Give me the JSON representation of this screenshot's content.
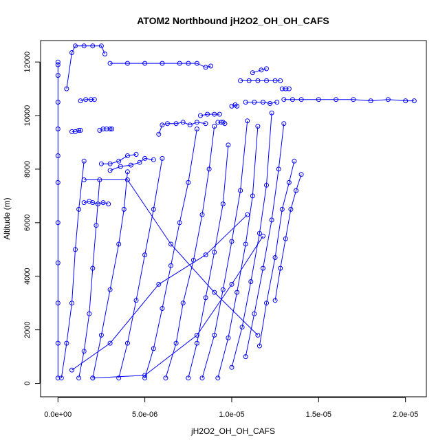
{
  "chart_data": {
    "type": "line",
    "title": "ATOM2 Northbound jH2O2_OH_OH_CAFS",
    "xlabel": "jH2O2_OH_OH_CAFS",
    "ylabel": "Altitude (m)",
    "xlim": [
      -1e-06,
      2.12e-05
    ],
    "ylim": [
      -500,
      12800
    ],
    "x_ticks": [
      0,
      5e-06,
      1e-05,
      1.5e-05,
      2e-05
    ],
    "x_tick_labels": [
      "0.0e+00",
      "5.0e-06",
      "1.0e-05",
      "1.5e-05",
      "2.0e-05"
    ],
    "y_ticks": [
      0,
      2000,
      4000,
      6000,
      8000,
      10000,
      12000
    ],
    "y_tick_labels": [
      "0",
      "2000",
      "4000",
      "6000",
      "8000",
      "10000",
      "12000"
    ],
    "grid": false,
    "legend": "none",
    "marker": "open-circle",
    "color": "#0000ff",
    "series": [
      {
        "x": [
          0.0,
          0.0,
          0.0,
          0.0,
          0.0,
          0.0,
          0.0,
          0.0,
          0.0,
          0.0,
          0.0,
          0.0
        ],
        "y": [
          200,
          1500,
          3000,
          4500,
          6000,
          7500,
          8500,
          9500,
          10500,
          11500,
          11900,
          12000
        ]
      },
      {
        "x": [
          5e-07,
          8e-07,
          1e-06,
          1.5e-06,
          2e-06,
          2.5e-06,
          2.7e-06
        ],
        "y": [
          11000,
          12350,
          12600,
          12600,
          12600,
          12600,
          12300
        ]
      },
      {
        "x": [
          3e-06,
          4e-06,
          5e-06,
          6e-06,
          7e-06,
          7.5e-06,
          8e-06,
          8.5e-06,
          8.8e-06
        ],
        "y": [
          11950,
          11950,
          11950,
          11950,
          11950,
          11950,
          11950,
          11800,
          11850
        ]
      },
      {
        "x": [
          1.3e-06,
          1.6e-06,
          1.9e-06,
          2.1e-06
        ],
        "y": [
          10550,
          10600,
          10600,
          10600
        ]
      },
      {
        "x": [
          8e-07,
          1e-06,
          1.2e-06,
          1.3e-06
        ],
        "y": [
          9400,
          9400,
          9450,
          9450
        ]
      },
      {
        "x": [
          2.4e-06,
          2.6e-06,
          2.8e-06,
          3e-06,
          3.1e-06
        ],
        "y": [
          9450,
          9500,
          9500,
          9500,
          9500
        ]
      },
      {
        "x": [
          2.5e-06,
          3e-06,
          3.5e-06,
          4e-06,
          4.5e-06
        ],
        "y": [
          8200,
          8200,
          8300,
          8500,
          8550
        ]
      },
      {
        "x": [
          3e-06,
          3.6e-06,
          4.2e-06,
          4.7e-06,
          5e-06,
          5.5e-06
        ],
        "y": [
          7950,
          8100,
          8150,
          8250,
          8400,
          8350
        ]
      },
      {
        "x": [
          1.5e-06,
          1.8e-06,
          2e-06,
          2.3e-06,
          2.6e-06,
          2.9e-06
        ],
        "y": [
          6750,
          6800,
          6750,
          6700,
          6750,
          6700
        ]
      },
      {
        "x": [
          5.8e-06,
          6e-06,
          6.3e-06,
          6.8e-06,
          7.2e-06,
          7.6e-06,
          8e-06,
          8.5e-06
        ],
        "y": [
          9300,
          9650,
          9700,
          9700,
          9750,
          9650,
          9750,
          9700
        ]
      },
      {
        "x": [
          8.2e-06,
          8.6e-06,
          9e-06,
          9.3e-06
        ],
        "y": [
          10000,
          10050,
          10050,
          10050
        ]
      },
      {
        "x": [
          9.2e-06,
          9.4e-06,
          9.5e-06,
          9.6e-06
        ],
        "y": [
          9750,
          9750,
          9750,
          9700
        ]
      },
      {
        "x": [
          1e-05,
          1.02e-05,
          1.03e-05
        ],
        "y": [
          10350,
          10400,
          10350
        ]
      },
      {
        "x": [
          1.05e-05,
          1.1e-05,
          1.15e-05,
          1.2e-05,
          1.25e-05,
          1.28e-05
        ],
        "y": [
          11300,
          11300,
          11300,
          11300,
          11300,
          11300
        ]
      },
      {
        "x": [
          1.12e-05,
          1.17e-05,
          1.2e-05
        ],
        "y": [
          11600,
          11700,
          11750
        ]
      },
      {
        "x": [
          1.08e-05,
          1.13e-05,
          1.18e-05,
          1.22e-05,
          1.26e-05
        ],
        "y": [
          10500,
          10500,
          10500,
          10450,
          10500
        ]
      },
      {
        "x": [
          1.3e-05,
          1.35e-05,
          1.4e-05,
          1.5e-05,
          1.6e-05,
          1.7e-05,
          1.8e-05,
          1.9e-05,
          2e-05,
          2.05e-05
        ],
        "y": [
          10600,
          10600,
          10600,
          10600,
          10600,
          10600,
          10550,
          10600,
          10550,
          10550
        ]
      },
      {
        "x": [
          1.29e-05,
          1.31e-05,
          1.33e-05
        ],
        "y": [
          11000,
          11000,
          11000
        ]
      },
      {
        "x": [
          2e-07,
          5e-07,
          8e-07,
          1e-06,
          1.2e-06,
          1.5e-06
        ],
        "y": [
          200,
          1500,
          3000,
          5000,
          6500,
          8300
        ]
      },
      {
        "x": [
          1.2e-06,
          1.5e-06,
          1.8e-06,
          2e-06,
          2.2e-06,
          2.4e-06
        ],
        "y": [
          200,
          1200,
          2600,
          4300,
          5900,
          7600
        ]
      },
      {
        "x": [
          2e-06,
          2.5e-06,
          3e-06,
          3.5e-06,
          3.8e-06,
          4e-06
        ],
        "y": [
          200,
          1800,
          3500,
          5200,
          6500,
          7900
        ]
      },
      {
        "x": [
          3.5e-06,
          4e-06,
          4.5e-06,
          5e-06,
          5.5e-06,
          6e-06
        ],
        "y": [
          200,
          1500,
          3100,
          4800,
          6500,
          8400
        ]
      },
      {
        "x": [
          5e-06,
          5.5e-06,
          6e-06,
          6.5e-06,
          7e-06,
          7.5e-06,
          8e-06
        ],
        "y": [
          200,
          1300,
          2800,
          4400,
          6000,
          7500,
          9500
        ]
      },
      {
        "x": [
          6.2e-06,
          6.8e-06,
          7.2e-06,
          7.8e-06,
          8.3e-06,
          8.7e-06,
          9e-06
        ],
        "y": [
          200,
          1500,
          3000,
          4600,
          6300,
          8000,
          9600
        ]
      },
      {
        "x": [
          7.5e-06,
          8e-06,
          8.5e-06,
          9e-06,
          9.5e-06,
          9.8e-06
        ],
        "y": [
          200,
          1500,
          3200,
          4900,
          6700,
          8900
        ]
      },
      {
        "x": [
          8.3e-06,
          9e-06,
          9.5e-06,
          1e-05,
          1.05e-05,
          1.09e-05
        ],
        "y": [
          200,
          1800,
          3500,
          5300,
          7200,
          9800
        ]
      },
      {
        "x": [
          9.2e-06,
          9.8e-06,
          1.03e-05,
          1.08e-05,
          1.12e-05,
          1.15e-05
        ],
        "y": [
          200,
          1700,
          3400,
          5200,
          7000,
          9600
        ]
      },
      {
        "x": [
          1e-05,
          1.06e-05,
          1.11e-05,
          1.16e-05,
          1.2e-05,
          1.23e-05
        ],
        "y": [
          600,
          2100,
          3800,
          5600,
          7400,
          10100
        ]
      },
      {
        "x": [
          1.08e-05,
          1.13e-05,
          1.18e-05,
          1.23e-05,
          1.27e-05,
          1.3e-05
        ],
        "y": [
          1000,
          2600,
          4300,
          6100,
          8000,
          9700
        ]
      },
      {
        "x": [
          1.16e-05,
          1.2e-05,
          1.25e-05,
          1.29e-05,
          1.33e-05,
          1.36e-05
        ],
        "y": [
          1400,
          3000,
          4700,
          6500,
          7500,
          8300
        ]
      },
      {
        "x": [
          1.25e-05,
          1.28e-05,
          1.31e-05,
          1.34e-05,
          1.37e-05,
          1.4e-05
        ],
        "y": [
          3100,
          4300,
          5400,
          6500,
          7200,
          7800
        ]
      },
      {
        "x": [
          2e-06,
          5e-06,
          8e-06,
          1e-05,
          1.18e-05
        ],
        "y": [
          200,
          300,
          1800,
          3700,
          5500
        ]
      },
      {
        "x": [
          8e-07,
          3e-06,
          5.8e-06,
          8.5e-06,
          1.09e-05
        ],
        "y": [
          500,
          1500,
          3700,
          4800,
          6300
        ]
      },
      {
        "x": [
          1.5e-06,
          4e-06,
          6.5e-06,
          9e-06,
          1.15e-05
        ],
        "y": [
          7600,
          7600,
          5200,
          3400,
          1800
        ]
      }
    ]
  }
}
